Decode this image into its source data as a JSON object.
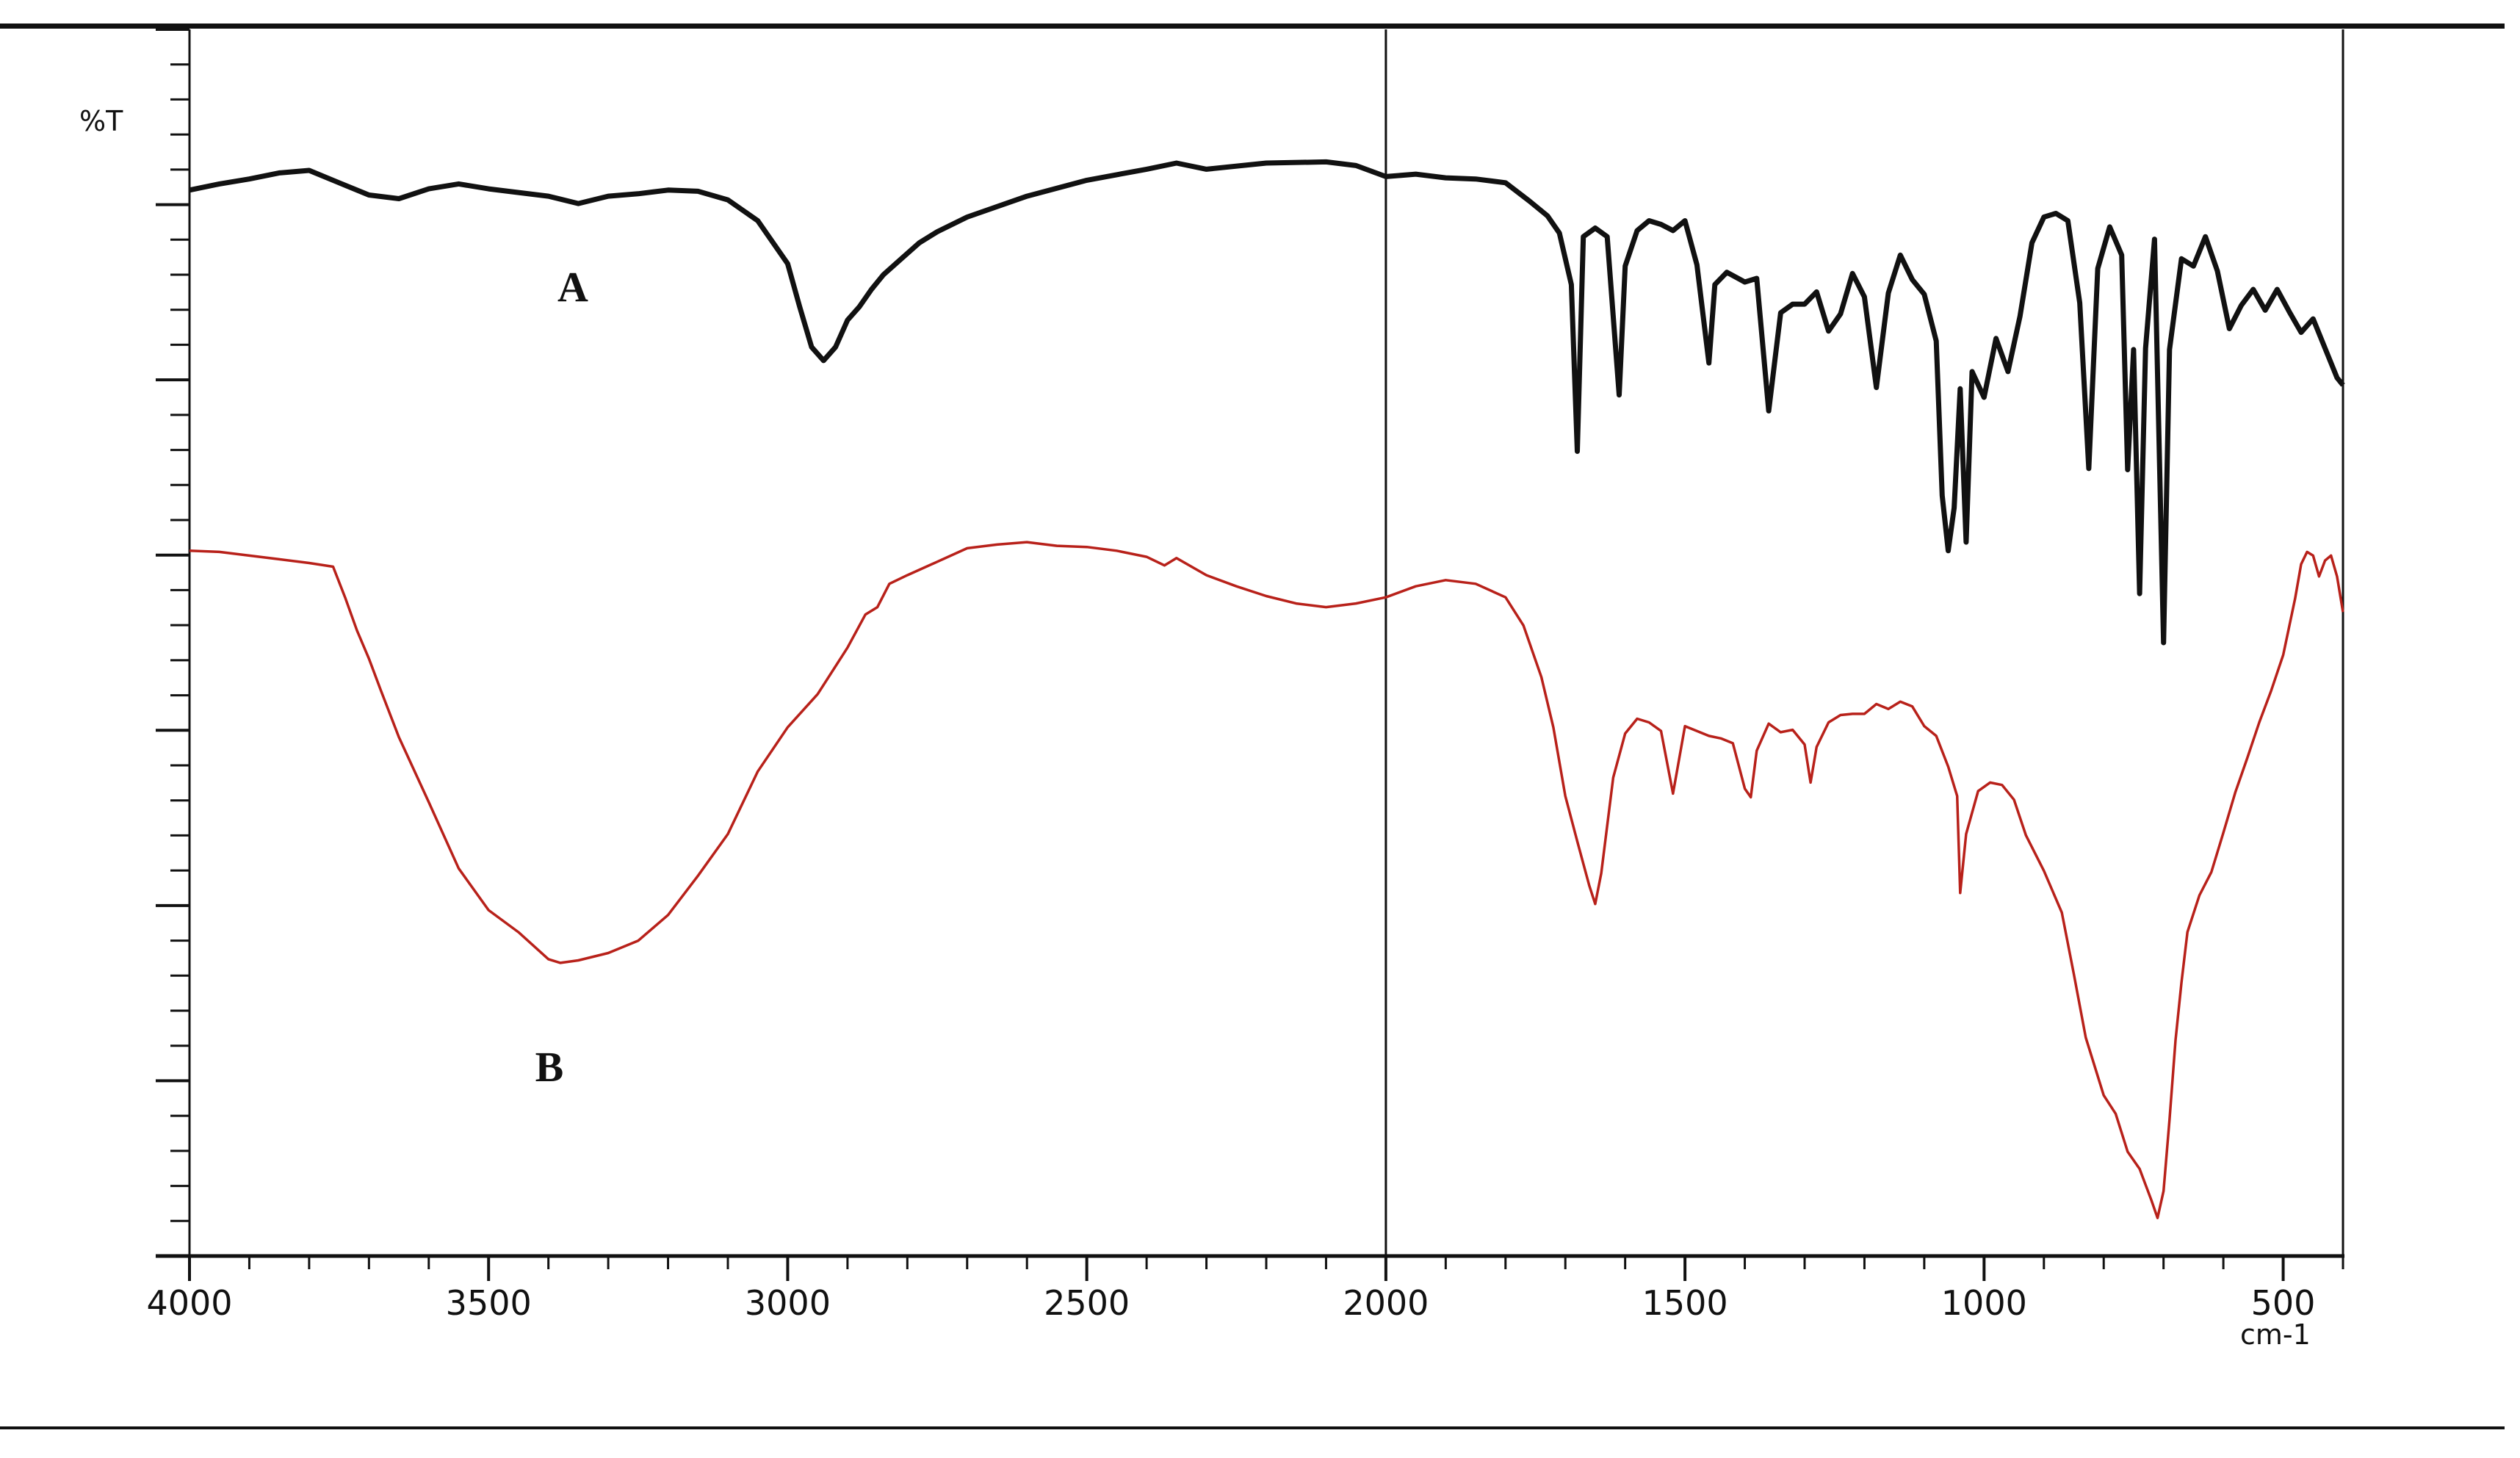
{
  "chart_data": {
    "type": "line",
    "ylabel": "%T",
    "xunit_label": "cm-1",
    "x_axis": {
      "range": [
        4000,
        400
      ],
      "reversed": true,
      "tick_labels": [
        "4000",
        "3500",
        "3000",
        "2500",
        "2000",
        "1500",
        "1000",
        "500"
      ],
      "tick_values": [
        4000,
        3500,
        3000,
        2500,
        2000,
        1500,
        1000,
        500
      ],
      "divider_at": 2000
    },
    "y_axis": {
      "range": [
        0,
        100
      ],
      "tick_labels": []
    },
    "grid": false,
    "series": [
      {
        "name": "A",
        "color": "#111111",
        "points": [
          [
            4000,
            86.9
          ],
          [
            3950,
            87.4
          ],
          [
            3900,
            87.8
          ],
          [
            3850,
            88.3
          ],
          [
            3800,
            88.5
          ],
          [
            3750,
            87.5
          ],
          [
            3700,
            86.5
          ],
          [
            3650,
            86.2
          ],
          [
            3600,
            87.0
          ],
          [
            3550,
            87.4
          ],
          [
            3500,
            87.0
          ],
          [
            3450,
            86.7
          ],
          [
            3400,
            86.4
          ],
          [
            3350,
            85.8
          ],
          [
            3300,
            86.4
          ],
          [
            3250,
            86.6
          ],
          [
            3200,
            86.9
          ],
          [
            3150,
            86.8
          ],
          [
            3100,
            86.1
          ],
          [
            3050,
            84.4
          ],
          [
            3000,
            80.9
          ],
          [
            2980,
            77.4
          ],
          [
            2960,
            74.1
          ],
          [
            2940,
            73.0
          ],
          [
            2920,
            74.1
          ],
          [
            2900,
            76.3
          ],
          [
            2880,
            77.4
          ],
          [
            2860,
            78.8
          ],
          [
            2840,
            80.0
          ],
          [
            2810,
            81.3
          ],
          [
            2780,
            82.6
          ],
          [
            2750,
            83.5
          ],
          [
            2700,
            84.7
          ],
          [
            2600,
            86.4
          ],
          [
            2500,
            87.7
          ],
          [
            2400,
            88.6
          ],
          [
            2350,
            89.1
          ],
          [
            2300,
            88.6
          ],
          [
            2200,
            89.1
          ],
          [
            2100,
            89.2
          ],
          [
            2050,
            88.9
          ],
          [
            2000,
            88.0
          ],
          [
            1950,
            88.2
          ],
          [
            1900,
            87.9
          ],
          [
            1850,
            87.8
          ],
          [
            1800,
            87.5
          ],
          [
            1760,
            86.0
          ],
          [
            1730,
            84.8
          ],
          [
            1710,
            83.4
          ],
          [
            1690,
            79.2
          ],
          [
            1680,
            65.6
          ],
          [
            1670,
            83.1
          ],
          [
            1650,
            83.8
          ],
          [
            1630,
            83.1
          ],
          [
            1610,
            70.2
          ],
          [
            1600,
            80.7
          ],
          [
            1580,
            83.6
          ],
          [
            1560,
            84.4
          ],
          [
            1540,
            84.1
          ],
          [
            1520,
            83.6
          ],
          [
            1500,
            84.4
          ],
          [
            1480,
            80.8
          ],
          [
            1460,
            72.8
          ],
          [
            1450,
            79.2
          ],
          [
            1430,
            80.2
          ],
          [
            1400,
            79.4
          ],
          [
            1380,
            79.7
          ],
          [
            1360,
            68.9
          ],
          [
            1340,
            76.9
          ],
          [
            1320,
            77.6
          ],
          [
            1300,
            77.6
          ],
          [
            1280,
            78.6
          ],
          [
            1260,
            75.4
          ],
          [
            1240,
            76.8
          ],
          [
            1220,
            80.1
          ],
          [
            1200,
            78.2
          ],
          [
            1180,
            70.8
          ],
          [
            1160,
            78.5
          ],
          [
            1140,
            81.6
          ],
          [
            1120,
            79.6
          ],
          [
            1100,
            78.4
          ],
          [
            1080,
            74.6
          ],
          [
            1070,
            62.0
          ],
          [
            1060,
            57.5
          ],
          [
            1050,
            61.0
          ],
          [
            1040,
            70.7
          ],
          [
            1030,
            58.2
          ],
          [
            1020,
            72.1
          ],
          [
            1000,
            70.0
          ],
          [
            980,
            74.8
          ],
          [
            960,
            72.1
          ],
          [
            940,
            76.6
          ],
          [
            920,
            82.6
          ],
          [
            900,
            84.7
          ],
          [
            880,
            85.0
          ],
          [
            860,
            84.4
          ],
          [
            840,
            77.7
          ],
          [
            825,
            64.2
          ],
          [
            810,
            80.5
          ],
          [
            790,
            83.9
          ],
          [
            770,
            81.6
          ],
          [
            760,
            64.1
          ],
          [
            750,
            73.9
          ],
          [
            740,
            54.0
          ],
          [
            730,
            74.0
          ],
          [
            715,
            82.9
          ],
          [
            700,
            50.0
          ],
          [
            690,
            73.9
          ],
          [
            670,
            81.3
          ],
          [
            650,
            80.7
          ],
          [
            630,
            83.1
          ],
          [
            610,
            80.3
          ],
          [
            590,
            75.6
          ],
          [
            570,
            77.5
          ],
          [
            550,
            78.8
          ],
          [
            530,
            77.1
          ],
          [
            510,
            78.8
          ],
          [
            490,
            77.0
          ],
          [
            470,
            75.3
          ],
          [
            450,
            76.4
          ],
          [
            430,
            74.0
          ],
          [
            410,
            71.6
          ],
          [
            400,
            71.0
          ]
        ]
      },
      {
        "name": "B",
        "color": "#b8211a",
        "points": [
          [
            4000,
            57.5
          ],
          [
            3950,
            57.4
          ],
          [
            3900,
            57.1
          ],
          [
            3850,
            56.8
          ],
          [
            3800,
            56.5
          ],
          [
            3760,
            56.2
          ],
          [
            3740,
            53.7
          ],
          [
            3720,
            51.0
          ],
          [
            3700,
            48.7
          ],
          [
            3680,
            46.1
          ],
          [
            3650,
            42.3
          ],
          [
            3600,
            37.0
          ],
          [
            3550,
            31.6
          ],
          [
            3500,
            28.2
          ],
          [
            3450,
            26.4
          ],
          [
            3400,
            24.2
          ],
          [
            3380,
            23.9
          ],
          [
            3350,
            24.1
          ],
          [
            3300,
            24.7
          ],
          [
            3250,
            25.7
          ],
          [
            3200,
            27.8
          ],
          [
            3150,
            31.0
          ],
          [
            3100,
            34.4
          ],
          [
            3050,
            39.5
          ],
          [
            3000,
            43.1
          ],
          [
            2950,
            45.8
          ],
          [
            2900,
            49.6
          ],
          [
            2870,
            52.3
          ],
          [
            2850,
            52.9
          ],
          [
            2830,
            54.8
          ],
          [
            2800,
            55.5
          ],
          [
            2750,
            56.6
          ],
          [
            2700,
            57.7
          ],
          [
            2650,
            58.0
          ],
          [
            2600,
            58.2
          ],
          [
            2550,
            57.9
          ],
          [
            2500,
            57.8
          ],
          [
            2450,
            57.5
          ],
          [
            2400,
            57.0
          ],
          [
            2370,
            56.3
          ],
          [
            2350,
            56.9
          ],
          [
            2300,
            55.5
          ],
          [
            2250,
            54.6
          ],
          [
            2200,
            53.8
          ],
          [
            2150,
            53.2
          ],
          [
            2100,
            52.9
          ],
          [
            2050,
            53.2
          ],
          [
            2000,
            53.7
          ],
          [
            1950,
            54.6
          ],
          [
            1900,
            55.1
          ],
          [
            1850,
            54.8
          ],
          [
            1800,
            53.7
          ],
          [
            1770,
            51.4
          ],
          [
            1740,
            47.2
          ],
          [
            1720,
            43.1
          ],
          [
            1700,
            37.5
          ],
          [
            1680,
            33.8
          ],
          [
            1660,
            30.2
          ],
          [
            1650,
            28.7
          ],
          [
            1640,
            31.2
          ],
          [
            1620,
            39.0
          ],
          [
            1600,
            42.6
          ],
          [
            1580,
            43.8
          ],
          [
            1560,
            43.5
          ],
          [
            1540,
            42.8
          ],
          [
            1520,
            37.7
          ],
          [
            1500,
            43.2
          ],
          [
            1480,
            42.8
          ],
          [
            1460,
            42.4
          ],
          [
            1440,
            42.2
          ],
          [
            1420,
            41.8
          ],
          [
            1400,
            38.1
          ],
          [
            1390,
            37.4
          ],
          [
            1380,
            41.2
          ],
          [
            1360,
            43.4
          ],
          [
            1340,
            42.7
          ],
          [
            1320,
            42.9
          ],
          [
            1300,
            41.7
          ],
          [
            1290,
            38.6
          ],
          [
            1280,
            41.5
          ],
          [
            1260,
            43.5
          ],
          [
            1240,
            44.1
          ],
          [
            1220,
            44.2
          ],
          [
            1200,
            44.2
          ],
          [
            1180,
            45.0
          ],
          [
            1160,
            44.6
          ],
          [
            1140,
            45.2
          ],
          [
            1120,
            44.8
          ],
          [
            1100,
            43.2
          ],
          [
            1080,
            42.4
          ],
          [
            1060,
            39.9
          ],
          [
            1045,
            37.5
          ],
          [
            1040,
            29.6
          ],
          [
            1030,
            34.4
          ],
          [
            1010,
            37.9
          ],
          [
            990,
            38.6
          ],
          [
            970,
            38.4
          ],
          [
            950,
            37.2
          ],
          [
            930,
            34.3
          ],
          [
            900,
            31.4
          ],
          [
            870,
            28.0
          ],
          [
            850,
            23.0
          ],
          [
            830,
            17.8
          ],
          [
            800,
            13.1
          ],
          [
            780,
            11.6
          ],
          [
            760,
            8.5
          ],
          [
            740,
            7.1
          ],
          [
            720,
            4.5
          ],
          [
            710,
            3.1
          ],
          [
            700,
            5.3
          ],
          [
            690,
            11.1
          ],
          [
            680,
            17.6
          ],
          [
            670,
            22.3
          ],
          [
            660,
            26.4
          ],
          [
            640,
            29.4
          ],
          [
            620,
            31.3
          ],
          [
            600,
            34.5
          ],
          [
            580,
            37.8
          ],
          [
            560,
            40.6
          ],
          [
            540,
            43.5
          ],
          [
            520,
            46.1
          ],
          [
            500,
            49.0
          ],
          [
            480,
            53.6
          ],
          [
            470,
            56.4
          ],
          [
            460,
            57.4
          ],
          [
            450,
            57.1
          ],
          [
            440,
            55.4
          ],
          [
            430,
            56.7
          ],
          [
            420,
            57.1
          ],
          [
            410,
            55.4
          ],
          [
            400,
            52.5
          ]
        ]
      }
    ]
  }
}
